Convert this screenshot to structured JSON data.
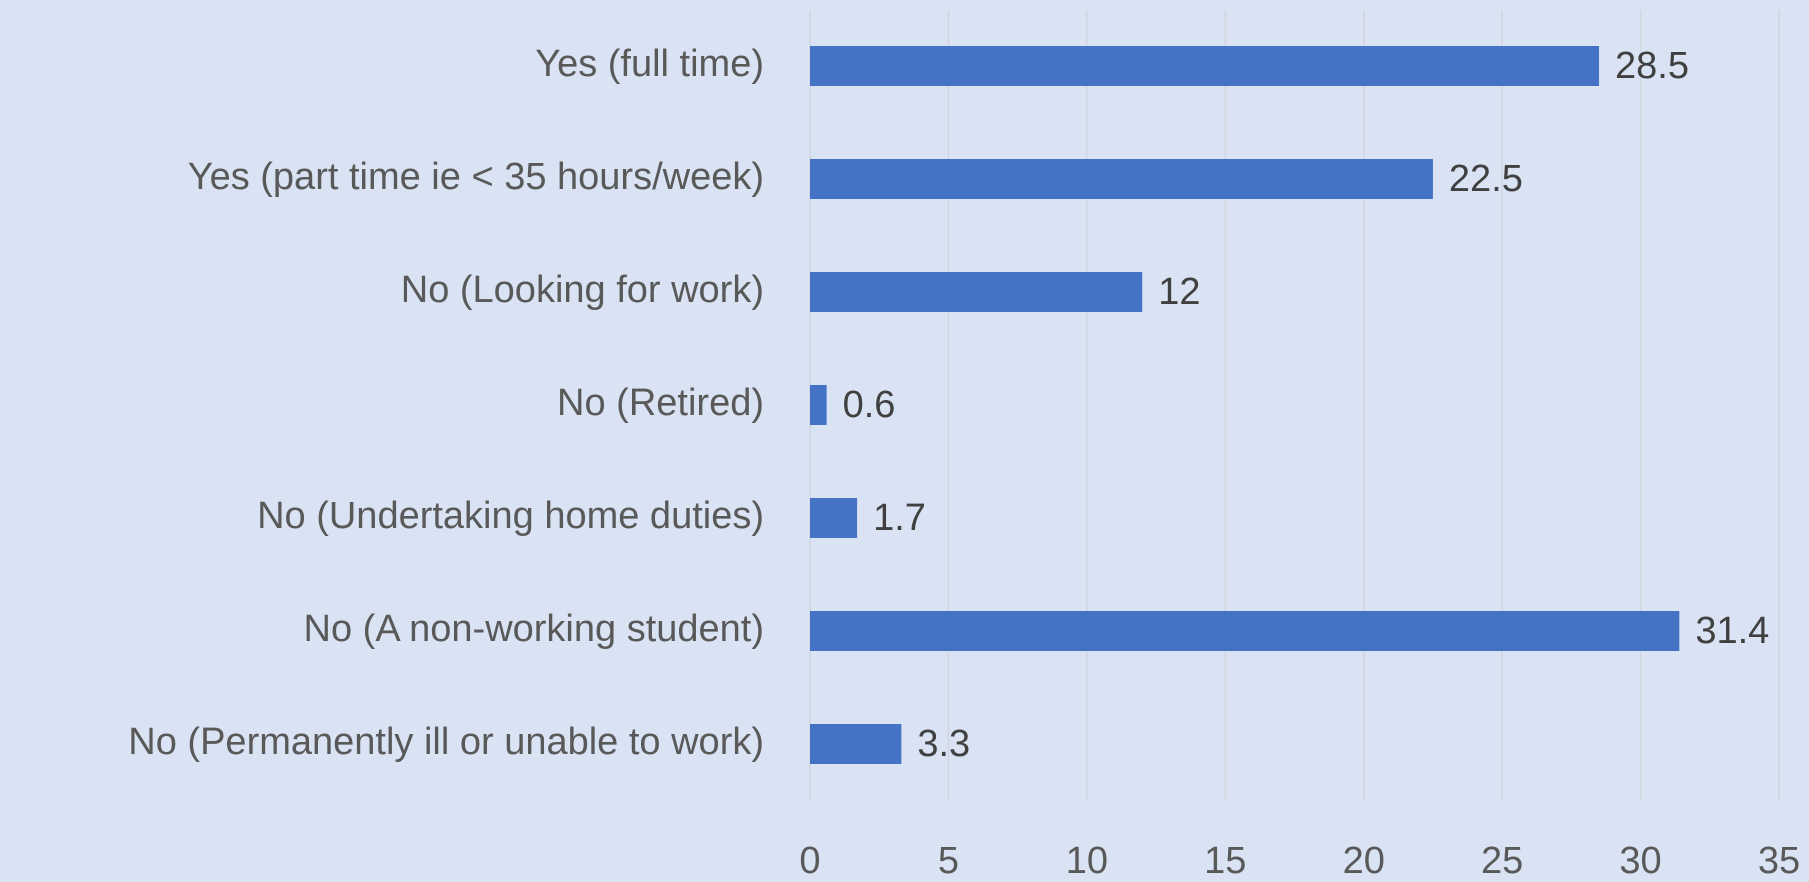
{
  "chart_data": {
    "type": "bar",
    "orientation": "horizontal",
    "categories": [
      "Yes (full time)",
      "Yes (part time ie < 35 hours/week)",
      "No (Looking for work)",
      "No (Retired)",
      "No (Undertaking home duties)",
      "No (A non-working student)",
      "No (Permanently ill or unable to work)"
    ],
    "values": [
      28.5,
      22.5,
      12,
      0.6,
      1.7,
      31.4,
      3.3
    ],
    "color": "#4472c4",
    "xlim": [
      0,
      35
    ],
    "xticks": [
      0,
      5,
      10,
      15,
      20,
      25,
      30,
      35
    ],
    "grid": true
  }
}
